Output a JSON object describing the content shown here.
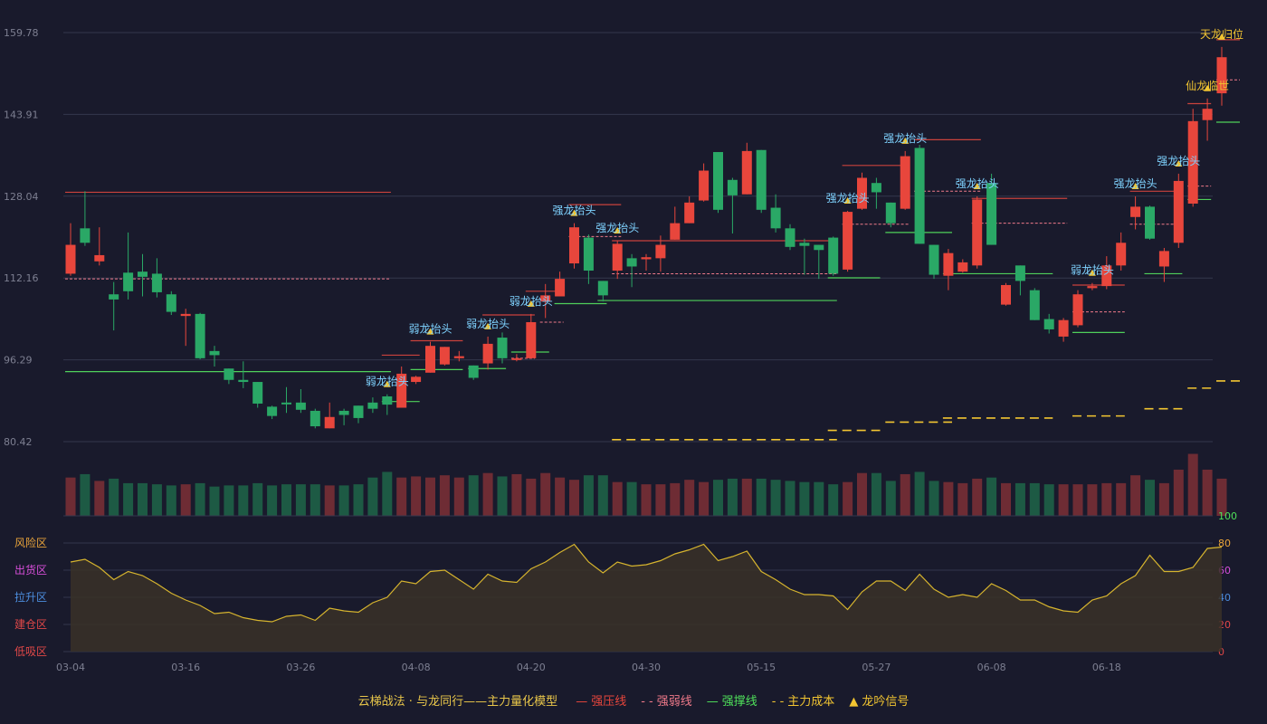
{
  "chart_data": {
    "type": "candlestick",
    "title": "云梯战法 · 与龙同行——主力量化模型",
    "price_axis": {
      "ticks": [
        "159.78",
        "143.91",
        "128.04",
        "112.16",
        "96.29",
        "80.42"
      ],
      "min": 80.42,
      "max": 159.78
    },
    "x_ticks": [
      {
        "i": 0,
        "label": "03-04"
      },
      {
        "i": 8,
        "label": "03-16"
      },
      {
        "i": 16,
        "label": "03-26"
      },
      {
        "i": 24,
        "label": "04-08"
      },
      {
        "i": 32,
        "label": "04-20"
      },
      {
        "i": 40,
        "label": "04-30"
      },
      {
        "i": 48,
        "label": "05-15"
      },
      {
        "i": 56,
        "label": "05-27"
      },
      {
        "i": 64,
        "label": "06-08"
      },
      {
        "i": 72,
        "label": "06-18"
      }
    ],
    "candles": [
      [
        113.0,
        118.6,
        122.8,
        112.6
      ],
      [
        121.8,
        119.0,
        129.0,
        118.4
      ],
      [
        115.4,
        116.6,
        122.0,
        114.6
      ],
      [
        109.0,
        108.0,
        111.4,
        102.0
      ],
      [
        113.2,
        109.6,
        121.0,
        108.0
      ],
      [
        113.4,
        112.4,
        116.8,
        108.6
      ],
      [
        113.0,
        109.4,
        116.0,
        108.4
      ],
      [
        109.0,
        105.6,
        109.6,
        105.0
      ],
      [
        104.8,
        105.2,
        106.2,
        99.0
      ],
      [
        105.2,
        96.6,
        105.4,
        96.4
      ],
      [
        98.0,
        97.2,
        99.0,
        95.0
      ],
      [
        94.6,
        92.4,
        94.6,
        91.6
      ],
      [
        92.4,
        92.0,
        96.0,
        90.8
      ],
      [
        92.0,
        87.8,
        92.0,
        87.0
      ],
      [
        87.2,
        85.4,
        87.4,
        84.8
      ],
      [
        88.0,
        87.8,
        91.0,
        86.0
      ],
      [
        88.0,
        86.6,
        90.6,
        86.0
      ],
      [
        86.4,
        83.4,
        86.8,
        83.0
      ],
      [
        83.0,
        85.2,
        88.0,
        83.0
      ],
      [
        86.4,
        85.6,
        86.8,
        83.6
      ],
      [
        87.4,
        85.0,
        87.4,
        84.0
      ],
      [
        88.0,
        86.8,
        89.0,
        86.0
      ],
      [
        89.2,
        87.6,
        89.6,
        85.6
      ],
      [
        87.0,
        93.6,
        95.0,
        87.0
      ],
      [
        92.0,
        93.0,
        93.2,
        91.6
      ],
      [
        93.8,
        99.0,
        99.8,
        93.8
      ],
      [
        95.4,
        98.8,
        98.8,
        95.2
      ],
      [
        96.6,
        97.0,
        98.0,
        96.0
      ],
      [
        95.2,
        92.8,
        95.2,
        92.4
      ],
      [
        95.6,
        99.4,
        100.8,
        94.4
      ],
      [
        100.6,
        96.6,
        101.6,
        95.6
      ],
      [
        96.6,
        96.6,
        97.4,
        96.0
      ],
      [
        96.6,
        103.6,
        105.2,
        96.6
      ],
      [
        107.6,
        108.8,
        111.0,
        104.4
      ],
      [
        108.6,
        112.0,
        113.4,
        108.6
      ],
      [
        115.0,
        122.0,
        122.8,
        114.0
      ],
      [
        120.0,
        113.6,
        120.6,
        111.0
      ],
      [
        111.6,
        108.8,
        111.6,
        107.6
      ],
      [
        113.6,
        118.8,
        119.4,
        112.0
      ],
      [
        116.0,
        114.4,
        116.8,
        110.4
      ],
      [
        115.8,
        116.2,
        116.8,
        113.6
      ],
      [
        116.0,
        118.6,
        120.4,
        113.4
      ],
      [
        119.6,
        122.8,
        126.0,
        119.6
      ],
      [
        122.8,
        126.8,
        128.0,
        122.8
      ],
      [
        127.2,
        133.0,
        134.4,
        127.0
      ],
      [
        136.6,
        125.4,
        136.6,
        124.8
      ],
      [
        131.2,
        128.2,
        131.6,
        120.8
      ],
      [
        128.4,
        136.8,
        138.4,
        128.4
      ],
      [
        137.0,
        125.4,
        137.0,
        124.8
      ],
      [
        125.8,
        121.8,
        128.4,
        121.0
      ],
      [
        121.8,
        118.2,
        122.6,
        117.6
      ],
      [
        119.0,
        118.4,
        119.8,
        112.8
      ],
      [
        118.6,
        117.6,
        118.6,
        112.0
      ],
      [
        120.0,
        113.0,
        120.2,
        112.6
      ],
      [
        113.8,
        125.0,
        125.2,
        113.4
      ],
      [
        125.6,
        131.6,
        132.6,
        125.4
      ],
      [
        130.6,
        128.8,
        131.6,
        125.6
      ],
      [
        126.8,
        122.8,
        126.8,
        122.0
      ],
      [
        125.6,
        135.8,
        136.8,
        125.4
      ],
      [
        137.4,
        118.8,
        138.0,
        118.8
      ],
      [
        118.6,
        112.8,
        118.6,
        112.0
      ],
      [
        112.6,
        117.0,
        117.8,
        109.8
      ],
      [
        113.4,
        115.2,
        115.8,
        113.2
      ],
      [
        114.6,
        127.4,
        128.0,
        114.0
      ],
      [
        130.6,
        118.6,
        132.4,
        118.6
      ],
      [
        107.0,
        110.8,
        111.2,
        106.8
      ],
      [
        114.6,
        111.6,
        114.6,
        108.8
      ],
      [
        109.8,
        104.0,
        110.2,
        104.0
      ],
      [
        104.2,
        102.2,
        105.2,
        101.4
      ],
      [
        100.8,
        104.0,
        104.4,
        99.8
      ],
      [
        103.0,
        109.0,
        109.8,
        102.6
      ],
      [
        110.2,
        110.6,
        111.2,
        109.8
      ],
      [
        110.6,
        114.6,
        116.4,
        110.0
      ],
      [
        114.6,
        119.0,
        121.0,
        113.6
      ],
      [
        124.0,
        126.0,
        128.0,
        121.6
      ],
      [
        126.0,
        119.8,
        126.2,
        119.6
      ],
      [
        114.4,
        117.4,
        118.0,
        111.4
      ],
      [
        119.0,
        131.0,
        132.4,
        118.0
      ],
      [
        126.6,
        142.6,
        145.0,
        126.0
      ],
      [
        142.8,
        145.0,
        147.0,
        138.8
      ],
      [
        148.0,
        155.0,
        157.0,
        145.6
      ]
    ],
    "volume": [
      34,
      37,
      31,
      33,
      29,
      29,
      28,
      27,
      28,
      29,
      26,
      27,
      27,
      29,
      27,
      28,
      28,
      28,
      27,
      27,
      28,
      34,
      39,
      34,
      35,
      34,
      36,
      34,
      36,
      38,
      35,
      37,
      33,
      38,
      34,
      32,
      36,
      36,
      30,
      30,
      28,
      28,
      29,
      32,
      30,
      32,
      33,
      33,
      33,
      32,
      31,
      30,
      30,
      28,
      30,
      38,
      38,
      31,
      37,
      39,
      31,
      30,
      29,
      33,
      34,
      29,
      29,
      29,
      28,
      28,
      28,
      28,
      29,
      29,
      36,
      32,
      29,
      41,
      55,
      41,
      33
    ],
    "volume_axis_max": 100,
    "indicator": {
      "series": [
        66,
        68,
        62,
        53,
        59,
        56,
        50,
        43,
        38,
        34,
        28,
        29,
        25,
        23,
        22,
        26,
        27,
        23,
        32,
        30,
        29,
        36,
        40,
        52,
        50,
        59,
        60,
        53,
        46,
        57,
        52,
        51,
        61,
        66,
        73,
        79,
        66,
        58,
        66,
        63,
        64,
        67,
        72,
        75,
        79,
        67,
        70,
        74,
        59,
        53,
        46,
        42,
        42,
        41,
        31,
        44,
        52,
        52,
        45,
        57,
        46,
        40,
        42,
        40,
        50,
        45,
        38,
        38,
        33,
        30,
        29,
        38,
        41,
        50,
        56,
        71,
        59,
        59,
        62,
        76,
        77
      ],
      "ticks": [
        "100",
        "80",
        "60",
        "40",
        "20",
        "0"
      ],
      "zones": [
        {
          "label": "风险区",
          "color": "#e8a33a",
          "level": 80
        },
        {
          "label": "出货区",
          "color": "#d64ed9",
          "level": 60
        },
        {
          "label": "拉升区",
          "color": "#4c8dde",
          "level": 40
        },
        {
          "label": "建仓区",
          "color": "#e04848",
          "level": 20
        },
        {
          "label": "低吸区",
          "color": "#e04848",
          "level": 0
        }
      ]
    },
    "resistance_lines": [
      {
        "x0": 0,
        "x1": 21,
        "y": 128.8,
        "style": "solid"
      },
      {
        "x0": 0,
        "x1": 21,
        "y": 112.0,
        "style": "dashed"
      },
      {
        "x0": 22,
        "x1": 23,
        "y": 97.2,
        "style": "solid"
      },
      {
        "x0": 24,
        "x1": 26,
        "y": 100.0,
        "style": "solid"
      },
      {
        "x0": 29,
        "x1": 31,
        "y": 105.0,
        "style": "solid"
      },
      {
        "x0": 31,
        "x1": 31,
        "y": 96.6,
        "style": "dashed"
      },
      {
        "x0": 32,
        "x1": 33,
        "y": 109.6,
        "style": "solid"
      },
      {
        "x0": 33,
        "x1": 33,
        "y": 103.6,
        "style": "dashed"
      },
      {
        "x0": 35,
        "x1": 37,
        "y": 126.4,
        "style": "solid"
      },
      {
        "x0": 35,
        "x1": 37,
        "y": 120.2,
        "style": "dashed"
      },
      {
        "x0": 38,
        "x1": 52,
        "y": 119.4,
        "style": "solid"
      },
      {
        "x0": 38,
        "x1": 52,
        "y": 113.0,
        "style": "dashed"
      },
      {
        "x0": 54,
        "x1": 57,
        "y": 134.0,
        "style": "solid"
      },
      {
        "x0": 54,
        "x1": 57,
        "y": 122.6,
        "style": "dashed"
      },
      {
        "x0": 59,
        "x1": 62,
        "y": 139.0,
        "style": "solid"
      },
      {
        "x0": 59,
        "x1": 62,
        "y": 129.0,
        "style": "dashed"
      },
      {
        "x0": 63,
        "x1": 68,
        "y": 127.6,
        "style": "solid"
      },
      {
        "x0": 63,
        "x1": 68,
        "y": 122.8,
        "style": "dashed"
      },
      {
        "x0": 70,
        "x1": 72,
        "y": 110.8,
        "style": "solid"
      },
      {
        "x0": 70,
        "x1": 72,
        "y": 105.6,
        "style": "dashed"
      },
      {
        "x0": 74,
        "x1": 76,
        "y": 129.0,
        "style": "solid"
      },
      {
        "x0": 74,
        "x1": 76,
        "y": 122.6,
        "style": "dashed"
      },
      {
        "x0": 78,
        "x1": 78,
        "y": 146.0,
        "style": "solid"
      },
      {
        "x0": 78,
        "x1": 78,
        "y": 130.0,
        "style": "dashed"
      },
      {
        "x0": 80,
        "x1": 80,
        "y": 158.4,
        "style": "solid"
      },
      {
        "x0": 80,
        "x1": 80,
        "y": 150.6,
        "style": "dashed"
      }
    ],
    "support_lines": [
      {
        "x0": 0,
        "x1": 21,
        "y": 94.0
      },
      {
        "x0": 22,
        "x1": 23,
        "y": 88.2
      },
      {
        "x0": 24,
        "x1": 26,
        "y": 94.4
      },
      {
        "x0": 28,
        "x1": 29,
        "y": 94.6
      },
      {
        "x0": 31,
        "x1": 32,
        "y": 97.8
      },
      {
        "x0": 34,
        "x1": 36,
        "y": 107.2
      },
      {
        "x0": 37,
        "x1": 52,
        "y": 107.8
      },
      {
        "x0": 53,
        "x1": 55,
        "y": 112.2
      },
      {
        "x0": 57,
        "x1": 60,
        "y": 121.0
      },
      {
        "x0": 61,
        "x1": 67,
        "y": 113.0
      },
      {
        "x0": 70,
        "x1": 72,
        "y": 101.6
      },
      {
        "x0": 75,
        "x1": 76,
        "y": 113.0
      },
      {
        "x0": 78,
        "x1": 78,
        "y": 127.4
      },
      {
        "x0": 80,
        "x1": 80,
        "y": 142.4
      }
    ],
    "cost_lines": [
      {
        "x0": 38,
        "x1": 52,
        "y": 80.8
      },
      {
        "x0": 53,
        "x1": 55,
        "y": 82.6
      },
      {
        "x0": 57,
        "x1": 60,
        "y": 84.2
      },
      {
        "x0": 61,
        "x1": 67,
        "y": 85.0
      },
      {
        "x0": 70,
        "x1": 72,
        "y": 85.4
      },
      {
        "x0": 75,
        "x1": 76,
        "y": 86.8
      },
      {
        "x0": 78,
        "x1": 78,
        "y": 90.8
      },
      {
        "x0": 80,
        "x1": 80,
        "y": 92.2
      }
    ],
    "signals": [
      {
        "i": 22,
        "label": "弱龙抬头",
        "type": "weak"
      },
      {
        "i": 25,
        "label": "弱龙抬头",
        "type": "weak"
      },
      {
        "i": 29,
        "label": "弱龙抬头",
        "type": "weak"
      },
      {
        "i": 32,
        "label": "弱龙抬头",
        "type": "weak"
      },
      {
        "i": 35,
        "label": "强龙抬头",
        "type": "strong"
      },
      {
        "i": 38,
        "label": "强龙抬头",
        "type": "strong"
      },
      {
        "i": 54,
        "label": "强龙抬头",
        "type": "strong"
      },
      {
        "i": 58,
        "label": "强龙抬头",
        "type": "strong"
      },
      {
        "i": 63,
        "label": "强龙抬头",
        "type": "strong"
      },
      {
        "i": 71,
        "label": "弱龙抬头",
        "type": "weak"
      },
      {
        "i": 74,
        "label": "强龙抬头",
        "type": "strong"
      },
      {
        "i": 77,
        "label": "强龙抬头",
        "type": "strong"
      },
      {
        "i": 79,
        "label": "仙龙临世",
        "type": "gold"
      },
      {
        "i": 80,
        "label": "天龙归位",
        "type": "gold"
      }
    ],
    "legend": [
      {
        "label": "强压线",
        "symbol": "—",
        "color": "#e8463c"
      },
      {
        "label": "强弱线",
        "symbol": "- -",
        "color": "#f07a8a"
      },
      {
        "label": "强撑线",
        "symbol": "—",
        "color": "#4fe05a"
      },
      {
        "label": "主力成本",
        "symbol": "- -",
        "color": "#f2c531"
      },
      {
        "label": "龙吟信号",
        "symbol": "▲",
        "color": "#f2c531"
      }
    ],
    "colors": {
      "up": "#e8463c",
      "down": "#2aa866",
      "grid": "#34374d",
      "indicator": "#d6b42e"
    }
  }
}
